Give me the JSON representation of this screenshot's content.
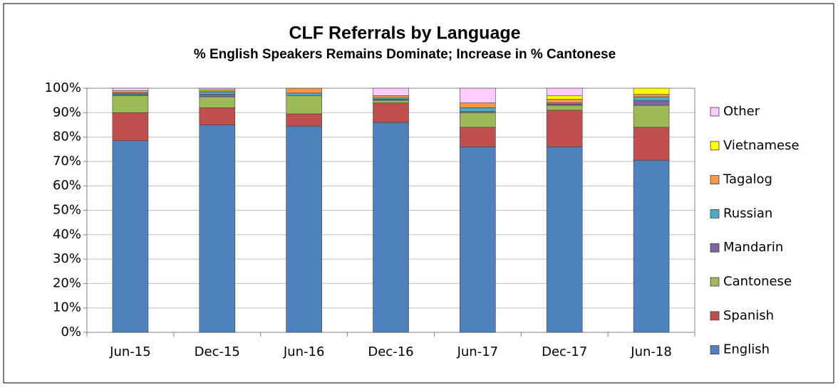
{
  "chart_data": {
    "type": "stacked_bar",
    "title": "CLF Referrals by Language",
    "subtitle": "% English Speakers Remains Dominate; Increase in % Cantonese",
    "categories": [
      "Jun-15",
      "Dec-15",
      "Jun-16",
      "Dec-16",
      "Jun-17",
      "Dec-17",
      "Jun-18"
    ],
    "series": [
      {
        "name": "English",
        "color": "#4f81bd",
        "values": [
          78.5,
          85,
          84.5,
          86,
          76,
          76,
          70.5
        ]
      },
      {
        "name": "Spanish",
        "color": "#c0504d",
        "values": [
          11.5,
          7,
          5,
          8,
          8,
          15,
          13.5
        ]
      },
      {
        "name": "Cantonese",
        "color": "#9bbb59",
        "values": [
          7,
          4.5,
          7.5,
          1,
          6,
          2,
          9
        ]
      },
      {
        "name": "Mandarin",
        "color": "#8064a2",
        "values": [
          0.5,
          1,
          0,
          0.5,
          0.5,
          0.5,
          2
        ]
      },
      {
        "name": "Russian",
        "color": "#4bacc6",
        "values": [
          0.5,
          1,
          1,
          0.5,
          1.5,
          0.5,
          1.5
        ]
      },
      {
        "name": "Tagalog",
        "color": "#f79646",
        "values": [
          0.5,
          0.5,
          2,
          1,
          2,
          1.5,
          1
        ]
      },
      {
        "name": "Vietnamese",
        "color": "#ffff00",
        "values": [
          0.5,
          0.5,
          0,
          0,
          0,
          1.5,
          2.5
        ]
      },
      {
        "name": "Other",
        "color": "#ffccff",
        "values": [
          1,
          0.5,
          0,
          3,
          6,
          3,
          0
        ]
      }
    ],
    "ylim": [
      0,
      100
    ],
    "yticks": [
      {
        "value": 0,
        "label": "0%"
      },
      {
        "value": 10,
        "label": "10%"
      },
      {
        "value": 20,
        "label": "20%"
      },
      {
        "value": 30,
        "label": "30%"
      },
      {
        "value": 40,
        "label": "40%"
      },
      {
        "value": 50,
        "label": "50%"
      },
      {
        "value": 60,
        "label": "60%"
      },
      {
        "value": 70,
        "label": "70%"
      },
      {
        "value": 80,
        "label": "80%"
      },
      {
        "value": 90,
        "label": "90%"
      },
      {
        "value": 100,
        "label": "100%"
      }
    ],
    "grid": true,
    "legend": "right"
  }
}
